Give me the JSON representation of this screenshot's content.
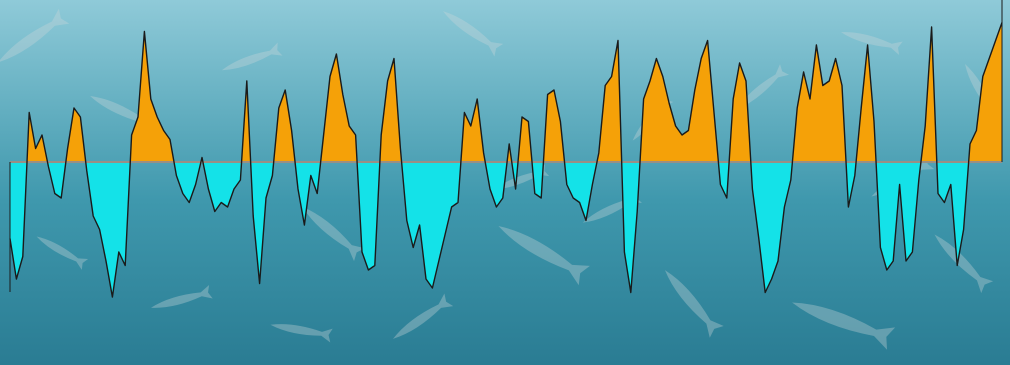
{
  "chart_data": {
    "type": "area",
    "baseline": 0,
    "ylim": [
      -3,
      3
    ],
    "series": [
      {
        "values": [
          -1.7,
          -2.6,
          -2.1,
          1.1,
          0.3,
          0.6,
          -0.1,
          -0.7,
          -0.8,
          0.3,
          1.2,
          1.0,
          -0.2,
          -1.2,
          -1.5,
          -2.2,
          -3.0,
          -2.0,
          -2.3,
          0.6,
          1.0,
          2.9,
          1.4,
          1.0,
          0.7,
          0.5,
          -0.3,
          -0.7,
          -0.9,
          -0.5,
          0.1,
          -0.6,
          -1.1,
          -0.9,
          -1.0,
          -0.6,
          -0.4,
          1.8,
          -1.2,
          -2.7,
          -0.8,
          -0.3,
          1.2,
          1.6,
          0.7,
          -0.6,
          -1.4,
          -0.3,
          -0.7,
          0.6,
          1.9,
          2.4,
          1.5,
          0.8,
          0.6,
          -2.0,
          -2.4,
          -2.3,
          0.6,
          1.8,
          2.3,
          0.3,
          -1.3,
          -1.9,
          -1.4,
          -2.6,
          -2.8,
          -2.2,
          -1.6,
          -1.0,
          -0.9,
          1.1,
          0.8,
          1.4,
          0.2,
          -0.6,
          -1.0,
          -0.8,
          0.4,
          -0.6,
          1.0,
          0.9,
          -0.7,
          -0.8,
          1.5,
          1.6,
          0.9,
          -0.5,
          -0.8,
          -0.9,
          -1.3,
          -0.5,
          0.2,
          1.7,
          1.9,
          2.7,
          -2.0,
          -2.9,
          -1.1,
          1.4,
          1.8,
          2.3,
          1.9,
          1.3,
          0.8,
          0.6,
          0.7,
          1.6,
          2.3,
          2.7,
          1.1,
          -0.5,
          -0.8,
          1.4,
          2.2,
          1.8,
          -0.6,
          -1.7,
          -2.9,
          -2.6,
          -2.2,
          -1.0,
          -0.4,
          1.2,
          2.0,
          1.4,
          2.6,
          1.7,
          1.8,
          2.3,
          1.7,
          -1.0,
          -0.3,
          1.2,
          2.6,
          0.9,
          -1.9,
          -2.4,
          -2.2,
          -0.5,
          -2.2,
          -2.0,
          -0.4,
          0.8,
          3.0,
          -0.7,
          -0.9,
          -0.5,
          -2.3,
          -1.5,
          0.4,
          0.7,
          1.9,
          2.3,
          2.7,
          3.1
        ]
      }
    ]
  },
  "colors": {
    "positive_fill": "#f5a108",
    "negative_fill": "#14e2e8",
    "curve_line": "#1a1a1a",
    "zero_line": "#9a8f84",
    "water_top": "#8fcad8",
    "water_mid": "#3f98ad",
    "water_bottom": "#2a7c93",
    "fish": "#cbd6d9"
  }
}
